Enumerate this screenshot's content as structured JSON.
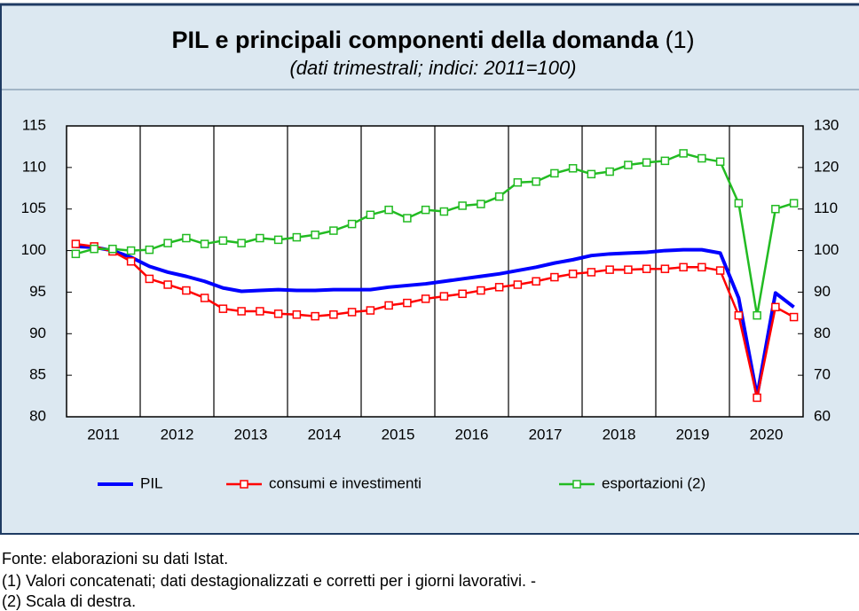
{
  "chart_data": {
    "type": "line",
    "title": "PIL e principali componenti della domanda",
    "title_note": "(1)",
    "subtitle": "(dati trimestrali; indici: 2011=100)",
    "categories": [
      "2011",
      null,
      null,
      null,
      "2012",
      null,
      null,
      null,
      "2013",
      null,
      null,
      null,
      "2014",
      null,
      null,
      null,
      "2015",
      null,
      null,
      null,
      "2016",
      null,
      null,
      null,
      "2017",
      null,
      null,
      null,
      "2018",
      null,
      null,
      null,
      "2019",
      null,
      null,
      null,
      "2020",
      null,
      null,
      null
    ],
    "ylim": [
      80,
      115
    ],
    "yticks": [
      80,
      85,
      90,
      95,
      100,
      105,
      110,
      115
    ],
    "y2lim": [
      60,
      130
    ],
    "y2ticks": [
      60,
      70,
      80,
      90,
      100,
      110,
      120,
      130
    ],
    "legend": "bottom",
    "series": [
      {
        "name": "PIL",
        "color": "#0000ff",
        "marker": "none",
        "values": [
          100.5,
          100.4,
          100.0,
          99.2,
          98.1,
          97.4,
          96.9,
          96.3,
          95.5,
          95.1,
          95.2,
          95.3,
          95.2,
          95.2,
          95.3,
          95.3,
          95.3,
          95.6,
          95.8,
          96.0,
          96.3,
          96.6,
          96.9,
          97.2,
          97.6,
          98.0,
          98.5,
          98.9,
          99.4,
          99.6,
          99.7,
          99.8,
          100.0,
          100.1,
          100.1,
          99.7,
          94.3,
          82.5,
          94.9,
          93.2
        ]
      },
      {
        "name": "consumi e investimenti",
        "color": "#ff0000",
        "marker": "square",
        "values": [
          100.8,
          100.5,
          99.9,
          98.7,
          96.6,
          95.9,
          95.2,
          94.3,
          93.0,
          92.7,
          92.7,
          92.4,
          92.3,
          92.1,
          92.3,
          92.6,
          92.8,
          93.4,
          93.7,
          94.2,
          94.5,
          94.8,
          95.2,
          95.6,
          95.9,
          96.3,
          96.8,
          97.2,
          97.4,
          97.7,
          97.7,
          97.8,
          97.8,
          98.0,
          98.0,
          97.6,
          92.2,
          82.3,
          93.2,
          92.0
        ]
      },
      {
        "name": "esportazioni (2)",
        "color": "#22bb22",
        "marker": "square",
        "axis": "y2",
        "values": [
          99.2,
          100.4,
          100.4,
          100.0,
          100.2,
          101.8,
          103.0,
          101.6,
          102.4,
          101.8,
          103.0,
          102.6,
          103.2,
          103.8,
          104.8,
          106.4,
          108.6,
          109.8,
          107.8,
          109.8,
          109.4,
          110.8,
          111.2,
          113.0,
          116.4,
          116.6,
          118.6,
          119.8,
          118.4,
          119.0,
          120.6,
          121.2,
          121.6,
          123.4,
          122.2,
          121.4,
          111.4,
          84.4,
          110.0,
          111.4
        ]
      }
    ]
  },
  "notes": [
    "Fonte: elaborazioni su dati Istat.",
    "(1) Valori concatenati; dati destagionalizzati e corretti per i giorni lavorativi. -",
    "(2) Scala di destra."
  ]
}
